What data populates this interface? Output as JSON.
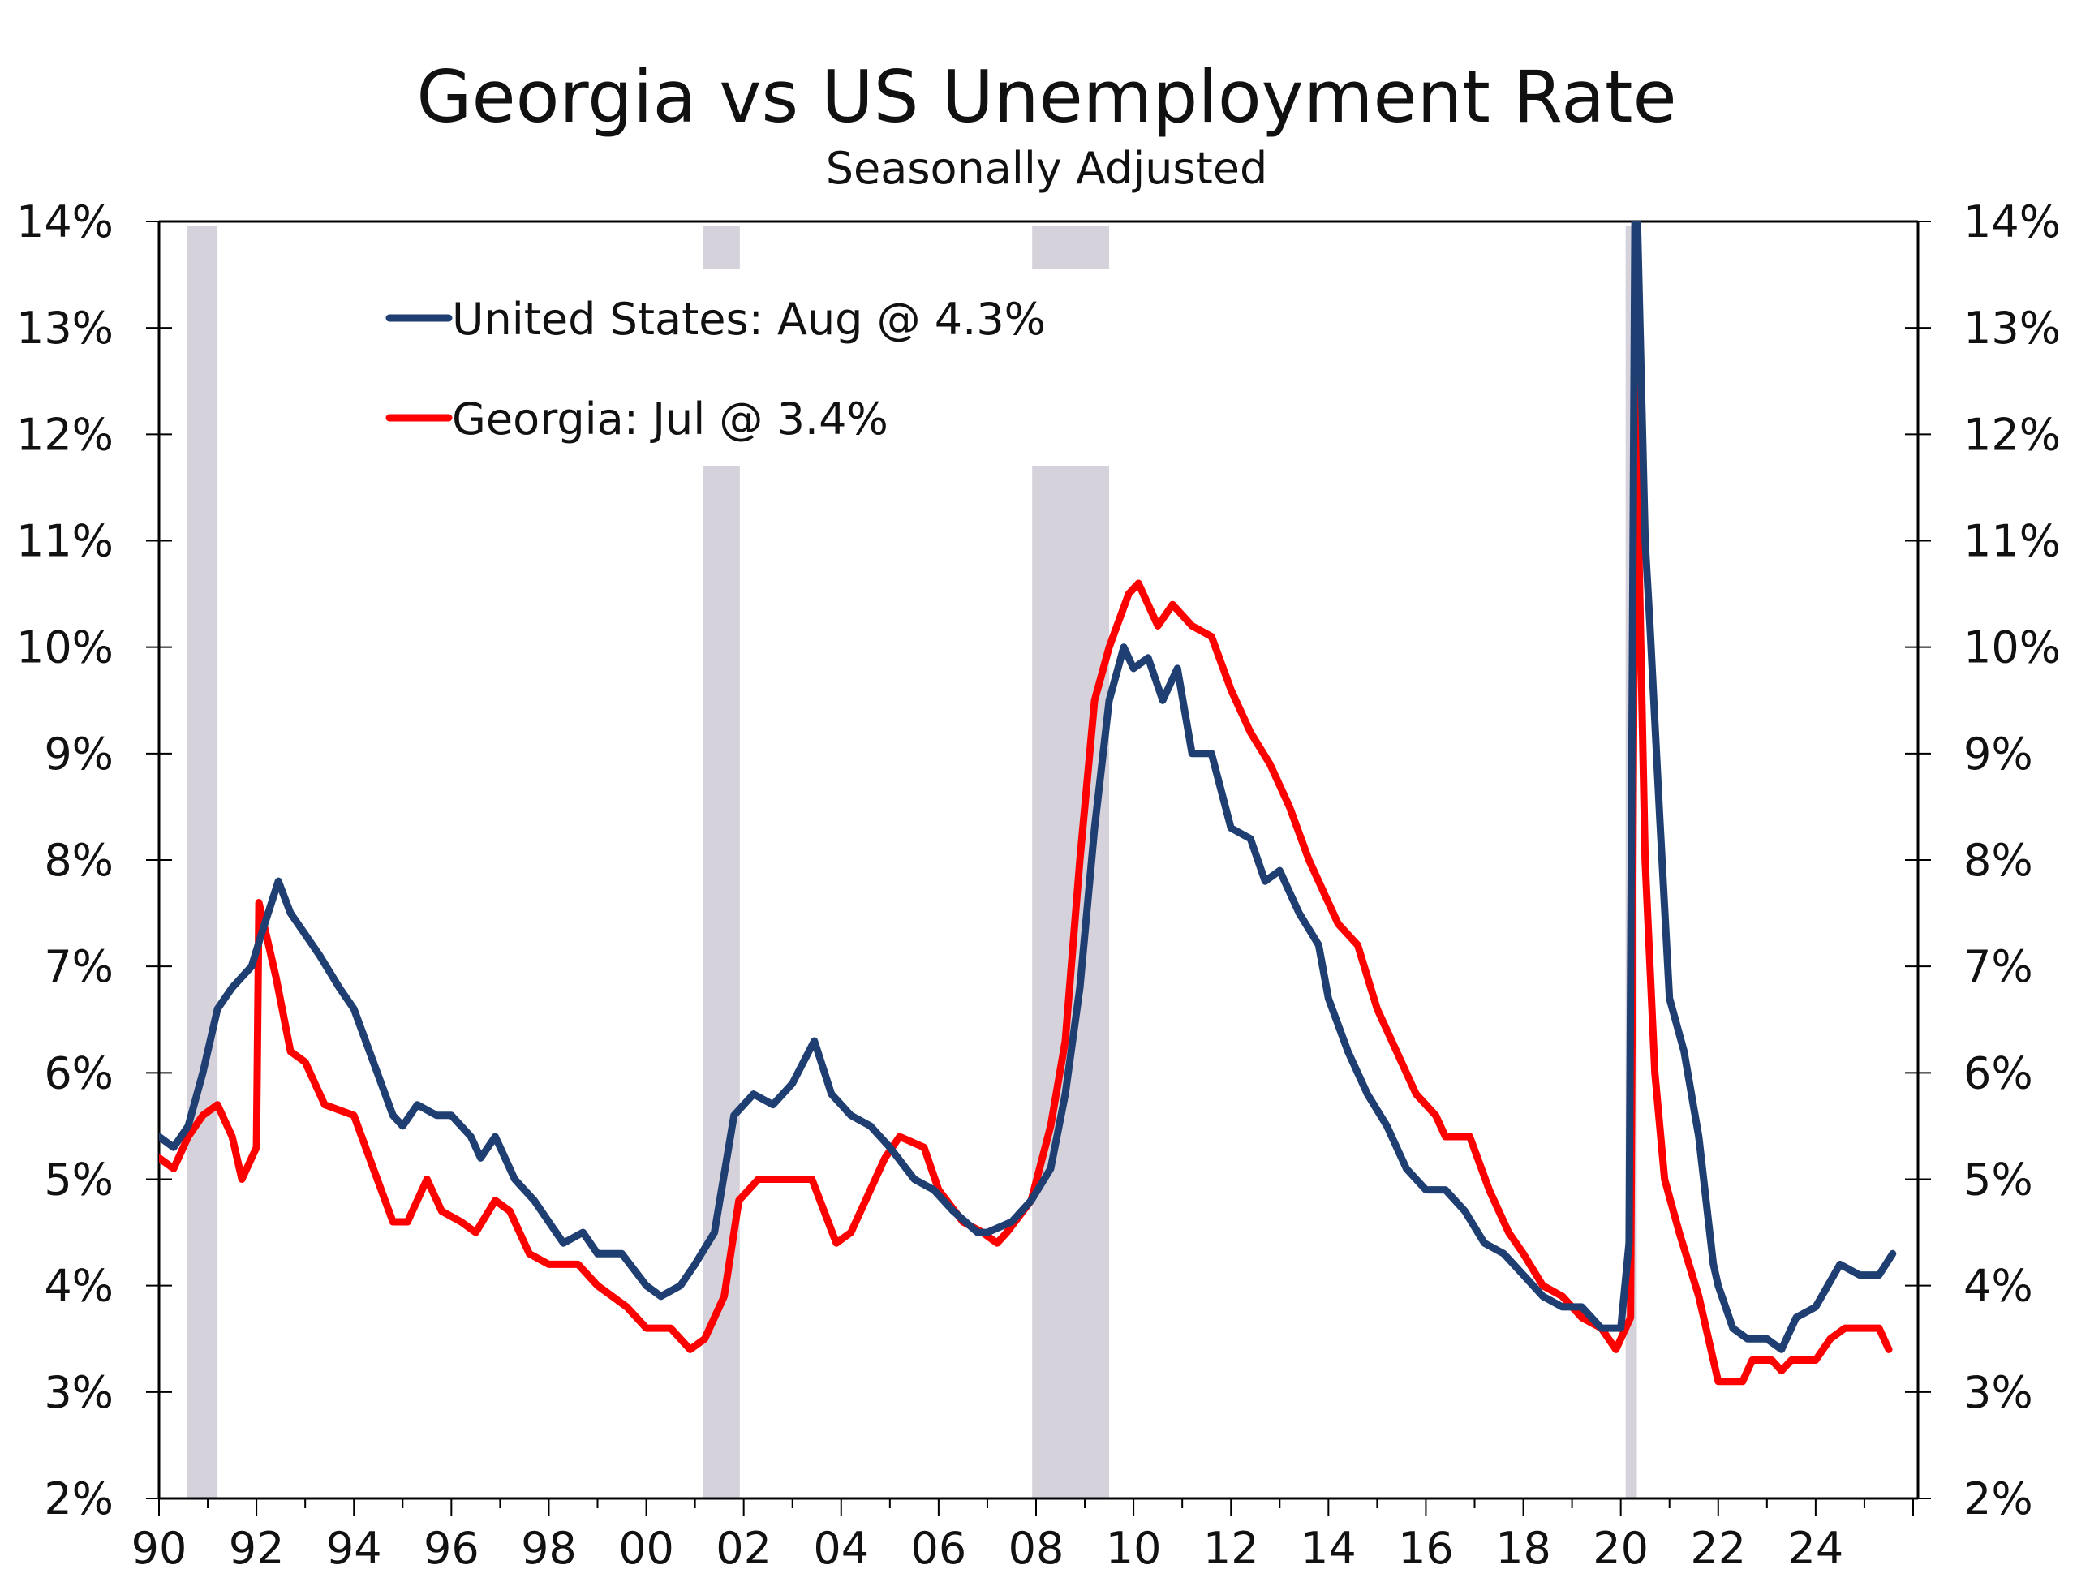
{
  "chart_data": {
    "type": "line",
    "title": "Georgia vs US Unemployment Rate",
    "subtitle": "Seasonally Adjusted",
    "xlabel": "",
    "ylabel": "",
    "xlim": [
      1990,
      2026.1
    ],
    "ylim": [
      2,
      14
    ],
    "grid": false,
    "legend_position": "top-left",
    "y_ticks": [
      2,
      3,
      4,
      5,
      6,
      7,
      8,
      9,
      10,
      11,
      12,
      13,
      14
    ],
    "y_tick_labels": [
      "2%",
      "3%",
      "4%",
      "5%",
      "6%",
      "7%",
      "8%",
      "9%",
      "10%",
      "11%",
      "12%",
      "13%",
      "14%"
    ],
    "x_ticks": [
      1990,
      1992,
      1994,
      1996,
      1998,
      2000,
      2002,
      2004,
      2006,
      2008,
      2010,
      2012,
      2014,
      2016,
      2018,
      2020,
      2022,
      2024
    ],
    "x_tick_labels": [
      "90",
      "92",
      "94",
      "96",
      "98",
      "00",
      "02",
      "04",
      "06",
      "08",
      "10",
      "12",
      "14",
      "16",
      "18",
      "20",
      "22",
      "24"
    ],
    "recessions": [
      [
        1990.58,
        1991.2
      ],
      [
        2001.17,
        2001.92
      ],
      [
        2007.92,
        2009.5
      ],
      [
        2020.1,
        2020.33
      ]
    ],
    "series": [
      {
        "name": "United States: Aug @ 4.3%",
        "color": "#1f3f73",
        "x": [
          1990.0,
          1990.3,
          1990.6,
          1990.9,
          1991.2,
          1991.5,
          1991.9,
          1992.1,
          1992.45,
          1992.7,
          1993.0,
          1993.3,
          1993.7,
          1994.0,
          1994.4,
          1994.8,
          1995.0,
          1995.3,
          1995.7,
          1996.0,
          1996.4,
          1996.6,
          1996.9,
          1997.3,
          1997.7,
          1998.0,
          1998.3,
          1998.7,
          1999.0,
          1999.5,
          2000.0,
          2000.3,
          2000.7,
          2001.0,
          2001.4,
          2001.8,
          2002.2,
          2002.6,
          2003.0,
          2003.45,
          2003.8,
          2004.2,
          2004.6,
          2005.0,
          2005.5,
          2005.9,
          2006.3,
          2006.8,
          2007.0,
          2007.5,
          2007.9,
          2008.3,
          2008.6,
          2008.9,
          2009.2,
          2009.5,
          2009.8,
          2010.0,
          2010.3,
          2010.6,
          2010.9,
          2011.2,
          2011.6,
          2012.0,
          2012.4,
          2012.7,
          2013.0,
          2013.4,
          2013.8,
          2014.0,
          2014.4,
          2014.8,
          2015.2,
          2015.6,
          2016.0,
          2016.4,
          2016.8,
          2017.2,
          2017.6,
          2018.0,
          2018.4,
          2018.8,
          2019.2,
          2019.6,
          2020.0,
          2020.17,
          2020.3,
          2020.5,
          2020.6,
          2020.8,
          2021.0,
          2021.3,
          2021.6,
          2021.9,
          2022.0,
          2022.3,
          2022.6,
          2023.0,
          2023.3,
          2023.6,
          2024.0,
          2024.5,
          2024.9,
          2025.3,
          2025.58
        ],
        "y": [
          5.4,
          5.3,
          5.5,
          6.0,
          6.6,
          6.8,
          7.0,
          7.3,
          7.8,
          7.5,
          7.3,
          7.1,
          6.8,
          6.6,
          6.1,
          5.6,
          5.5,
          5.7,
          5.6,
          5.6,
          5.4,
          5.2,
          5.4,
          5.0,
          4.8,
          4.6,
          4.4,
          4.5,
          4.3,
          4.3,
          4.0,
          3.9,
          4.0,
          4.2,
          4.5,
          5.6,
          5.8,
          5.7,
          5.9,
          6.3,
          5.8,
          5.6,
          5.5,
          5.3,
          5.0,
          4.9,
          4.7,
          4.5,
          4.5,
          4.6,
          4.8,
          5.1,
          5.8,
          6.8,
          8.3,
          9.5,
          10.0,
          9.8,
          9.9,
          9.5,
          9.8,
          9.0,
          9.0,
          8.3,
          8.2,
          7.8,
          7.9,
          7.5,
          7.2,
          6.7,
          6.2,
          5.8,
          5.5,
          5.1,
          4.9,
          4.9,
          4.7,
          4.4,
          4.3,
          4.1,
          3.9,
          3.8,
          3.8,
          3.6,
          3.6,
          4.4,
          14.8,
          11.0,
          10.2,
          8.4,
          6.7,
          6.2,
          5.4,
          4.2,
          4.0,
          3.6,
          3.5,
          3.5,
          3.4,
          3.7,
          3.8,
          4.2,
          4.1,
          4.1,
          4.3
        ]
      },
      {
        "name": "Georgia: Jul @ 3.4%",
        "color": "#ff0000",
        "x": [
          1990.0,
          1990.3,
          1990.6,
          1990.9,
          1991.2,
          1991.5,
          1991.7,
          1992.0,
          1992.05,
          1992.4,
          1992.7,
          1993.0,
          1993.4,
          1994.0,
          1994.4,
          1994.8,
          1995.1,
          1995.5,
          1995.8,
          1996.2,
          1996.5,
          1996.9,
          1997.2,
          1997.6,
          1998.0,
          1998.6,
          1999.0,
          1999.6,
          2000.0,
          2000.5,
          2000.9,
          2001.2,
          2001.6,
          2001.9,
          2002.3,
          2002.8,
          2003.4,
          2003.9,
          2004.2,
          2004.9,
          2005.2,
          2005.7,
          2006.0,
          2006.5,
          2006.9,
          2007.2,
          2007.4,
          2007.9,
          2008.3,
          2008.6,
          2008.9,
          2009.2,
          2009.5,
          2009.9,
          2010.1,
          2010.5,
          2010.8,
          2011.2,
          2011.6,
          2012.0,
          2012.4,
          2012.8,
          2013.2,
          2013.6,
          2014.0,
          2014.2,
          2014.6,
          2015.0,
          2015.4,
          2015.8,
          2016.2,
          2016.4,
          2016.9,
          2017.3,
          2017.7,
          2018.0,
          2018.4,
          2018.8,
          2019.2,
          2019.6,
          2019.9,
          2020.2,
          2020.3,
          2020.5,
          2020.7,
          2020.9,
          2021.2,
          2021.6,
          2021.9,
          2022.0,
          2022.5,
          2022.7,
          2023.1,
          2023.3,
          2023.5,
          2024.0,
          2024.3,
          2024.6,
          2025.3,
          2025.5
        ],
        "y": [
          5.2,
          5.1,
          5.4,
          5.6,
          5.7,
          5.4,
          5.0,
          5.3,
          7.6,
          6.9,
          6.2,
          6.1,
          5.7,
          5.6,
          5.1,
          4.6,
          4.6,
          5.0,
          4.7,
          4.6,
          4.5,
          4.8,
          4.7,
          4.3,
          4.2,
          4.2,
          4.0,
          3.8,
          3.6,
          3.6,
          3.4,
          3.5,
          3.9,
          4.8,
          5.0,
          5.0,
          5.0,
          4.4,
          4.5,
          5.2,
          5.4,
          5.3,
          4.9,
          4.6,
          4.5,
          4.4,
          4.5,
          4.8,
          5.5,
          6.3,
          8.0,
          9.5,
          10.0,
          10.5,
          10.6,
          10.2,
          10.4,
          10.2,
          10.1,
          9.6,
          9.2,
          8.9,
          8.5,
          8.0,
          7.6,
          7.4,
          7.2,
          6.6,
          6.2,
          5.8,
          5.6,
          5.4,
          5.4,
          4.9,
          4.5,
          4.3,
          4.0,
          3.9,
          3.7,
          3.6,
          3.4,
          3.7,
          12.5,
          8.0,
          6.0,
          5.0,
          4.5,
          3.9,
          3.3,
          3.1,
          3.1,
          3.3,
          3.3,
          3.2,
          3.3,
          3.3,
          3.5,
          3.6,
          3.6,
          3.4
        ]
      }
    ]
  }
}
